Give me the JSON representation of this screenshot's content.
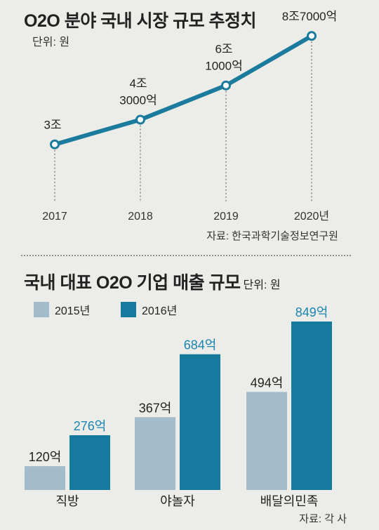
{
  "chart_data": [
    {
      "type": "line",
      "title": "O2O 분야 국내 시장 규모 추정치",
      "unit": "단위: 원",
      "source": "자료: 한국과학기술정보연구원",
      "categories": [
        "2017",
        "2018",
        "2019",
        "2020년"
      ],
      "values": [
        30000,
        43000,
        61000,
        87000
      ],
      "value_unit": "억원",
      "data_labels": [
        [
          "3조"
        ],
        [
          "4조",
          "3000억"
        ],
        [
          "6조",
          "1000억"
        ],
        [
          "8조7000억"
        ]
      ],
      "ylim": [
        0,
        100000
      ],
      "grid": false,
      "colors": {
        "line": "#1b7b9c",
        "marker_fill": "#ffffff"
      }
    },
    {
      "type": "bar",
      "title": "국내 대표 O2O 기업 매출 규모",
      "unit": "단위: 원",
      "source": "자료: 각 사",
      "categories": [
        "직방",
        "야놀자",
        "배달의민족"
      ],
      "value_unit": "억",
      "series": [
        {
          "name": "2015년",
          "values": [
            120,
            367,
            494
          ],
          "color": "#a3bccb",
          "label_color": "#222222"
        },
        {
          "name": "2016년",
          "values": [
            276,
            684,
            849
          ],
          "color": "#157a9e",
          "label_color": "#1a85b0"
        }
      ],
      "ylim": [
        0,
        900
      ],
      "grid": false,
      "legend": "top-left"
    }
  ]
}
